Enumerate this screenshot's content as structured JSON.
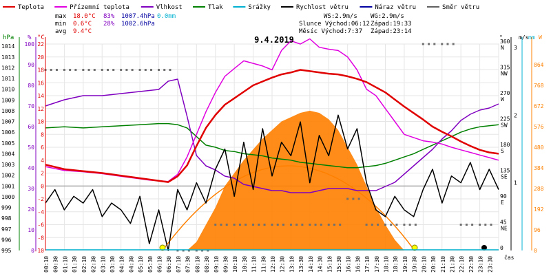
{
  "chart_data": {
    "type": "line",
    "title": "9.4.2019",
    "legend": [
      {
        "name": "Teplota",
        "color": "#e00000"
      },
      {
        "name": "Přízemní teplota",
        "color": "#e000e0"
      },
      {
        "name": "Vlhkost",
        "color": "#8000c0"
      },
      {
        "name": "Tlak",
        "color": "#008000"
      },
      {
        "name": "Srážky",
        "color": "#00b0d0"
      },
      {
        "name": "Rychlost větru",
        "color": "#000000"
      },
      {
        "name": "Náraz větru",
        "color": "#0000a0"
      },
      {
        "name": "Směr větru",
        "color": "#606060"
      }
    ],
    "stats": {
      "max": {
        "label": "max",
        "temp": "18.0°C",
        "hum": "83%",
        "press": "1007.4hPa",
        "rain": "0.0mm"
      },
      "min": {
        "label": "min",
        "temp": "0.6°C",
        "hum": "28%",
        "press": "1002.6hPa"
      },
      "avg": {
        "label": "avg",
        "temp": "9.4°C"
      }
    },
    "info": {
      "ws": "WS:2.9m/s",
      "wg": "WG:2.9m/s",
      "sun": "Slunce Východ:06:12",
      "sun_set": "Západ:19:33",
      "moon": "Měsíc Východ:7:37",
      "moon_set": "Západ:23:14"
    },
    "axes": {
      "hpa": {
        "unit": "hPa",
        "ticks": [
          995,
          996,
          997,
          998,
          999,
          1000,
          1001,
          1002,
          1003,
          1004,
          1005,
          1006,
          1007,
          1008,
          1009,
          1010,
          1011,
          1012,
          1013,
          1014
        ]
      },
      "pct": {
        "unit": "%",
        "ticks": [
          0,
          10,
          20,
          30,
          40,
          50,
          60,
          70,
          80,
          90,
          100
        ]
      },
      "c": {
        "unit": "°C",
        "ticks": [
          -10,
          -8,
          -6,
          -4,
          -2,
          0,
          2,
          4,
          6,
          8,
          10,
          12,
          14,
          16,
          18,
          20,
          22
        ]
      },
      "dir": {
        "unit": "°",
        "ticks": [
          "0",
          "45 NE",
          "90 E",
          "135 SE",
          "180 S",
          "225 SW",
          "270 W",
          "315 NW",
          "360 N"
        ]
      },
      "ms": {
        "unit": "m/s",
        "ticks": [
          1,
          2,
          3
        ]
      },
      "mm": {
        "unit": "mm"
      },
      "w": {
        "unit": "W",
        "ticks": [
          0,
          96,
          192,
          288,
          384,
          480,
          576,
          672,
          768,
          864
        ]
      },
      "x": {
        "label": "čas",
        "ticks": [
          "00:10",
          "00:30",
          "01:10",
          "01:30",
          "02:10",
          "02:30",
          "03:10",
          "03:30",
          "04:10",
          "04:30",
          "05:10",
          "05:30",
          "06:10",
          "06:30",
          "07:10",
          "07:30",
          "08:10",
          "08:30",
          "09:10",
          "09:30",
          "10:10",
          "10:30",
          "11:10",
          "11:30",
          "12:10",
          "12:30",
          "13:10",
          "13:30",
          "14:10",
          "14:30",
          "15:10",
          "15:30",
          "16:10",
          "16:30",
          "17:10",
          "17:30",
          "18:10",
          "18:30",
          "19:10",
          "19:30",
          "20:10",
          "20:30",
          "21:10",
          "21:30",
          "22:10",
          "22:30",
          "23:10",
          "23:30"
        ]
      }
    },
    "series": [
      {
        "name": "Teplota",
        "unit": "°C",
        "x": [
          0,
          1,
          2,
          3,
          4,
          5,
          5.5,
          6,
          6.5,
          7,
          7.5,
          8,
          8.5,
          9,
          9.5,
          10,
          10.5,
          11,
          11.5,
          12,
          12.5,
          13,
          13.5,
          14,
          14.5,
          15,
          15.5,
          16,
          16.5,
          17,
          17.5,
          18,
          18.5,
          19,
          19.5,
          20,
          20.5,
          21,
          21.5,
          22,
          22.5,
          23,
          23.5,
          24
        ],
        "y": [
          3.3,
          2.6,
          2.3,
          2.0,
          1.6,
          1.2,
          1.0,
          0.8,
          0.6,
          1.5,
          3.2,
          6.2,
          9.0,
          11.0,
          12.6,
          13.6,
          14.6,
          15.6,
          16.2,
          16.8,
          17.3,
          17.6,
          18.0,
          17.8,
          17.6,
          17.4,
          17.3,
          17.0,
          16.6,
          16.1,
          15.3,
          14.5,
          13.4,
          12.3,
          11.3,
          10.3,
          9.2,
          8.4,
          7.7,
          6.9,
          6.2,
          5.6,
          5.2,
          5.0
        ]
      },
      {
        "name": "Přízemní teplota",
        "unit": "°C",
        "x": [
          0,
          1,
          2,
          3,
          4,
          5,
          5.5,
          6,
          6.5,
          7,
          7.5,
          8,
          8.5,
          9,
          9.5,
          10,
          10.5,
          11,
          11.5,
          12,
          12.5,
          13,
          13.5,
          14,
          14.5,
          15,
          15.5,
          16,
          16.5,
          17,
          17.5,
          18,
          18.5,
          19,
          19.5,
          20,
          20.5,
          21,
          21.5,
          22,
          22.5,
          23,
          23.5,
          24
        ],
        "y": [
          3.0,
          2.4,
          2.2,
          1.9,
          1.5,
          1.1,
          0.9,
          0.8,
          0.7,
          1.8,
          4.5,
          8.0,
          11.5,
          14.5,
          17.0,
          18.2,
          19.4,
          19.0,
          18.6,
          18.0,
          21.0,
          22.5,
          22.0,
          22.8,
          21.5,
          21.2,
          21.0,
          20.0,
          18.0,
          15.0,
          14.0,
          12.0,
          10.0,
          8.0,
          7.5,
          7.0,
          6.8,
          6.5,
          6.0,
          5.6,
          5.2,
          4.8,
          4.4,
          4.0
        ]
      },
      {
        "name": "Vlhkost",
        "unit": "%",
        "x": [
          0,
          1,
          2,
          3,
          4,
          5,
          6,
          6.5,
          7,
          7.5,
          8,
          8.5,
          9,
          9.5,
          10,
          10.5,
          11,
          11.5,
          12,
          12.5,
          13,
          13.5,
          14,
          14.5,
          15,
          15.5,
          16,
          16.5,
          17,
          17.5,
          18,
          18.5,
          19,
          19.5,
          20,
          20.5,
          21,
          21.5,
          22,
          22.5,
          23,
          23.5,
          24
        ],
        "y": [
          70,
          73,
          75,
          75,
          76,
          77,
          78,
          82,
          83,
          65,
          46,
          41,
          39,
          36,
          35,
          32,
          31,
          30,
          29,
          29,
          28,
          28,
          28,
          29,
          30,
          30,
          30,
          29,
          29,
          29,
          31,
          33,
          37,
          41,
          45,
          49,
          54,
          58,
          63,
          66,
          68,
          69,
          71
        ]
      },
      {
        "name": "Tlak",
        "unit": "hPa",
        "x": [
          0,
          1,
          2,
          3,
          4,
          5,
          6,
          6.5,
          7,
          7.5,
          8,
          8.5,
          9,
          9.5,
          10,
          10.5,
          11,
          11.5,
          12,
          12.5,
          13,
          13.5,
          14,
          14.5,
          15,
          15.5,
          16,
          16.5,
          17,
          17.5,
          18,
          18.5,
          19,
          19.5,
          20,
          20.5,
          21,
          21.5,
          22,
          22.5,
          23,
          23.5,
          24
        ],
        "y": [
          1006.4,
          1006.5,
          1006.4,
          1006.5,
          1006.6,
          1006.7,
          1006.8,
          1006.8,
          1006.7,
          1006.4,
          1005.6,
          1004.8,
          1004.6,
          1004.3,
          1004.2,
          1004.0,
          1003.9,
          1003.8,
          1003.6,
          1003.5,
          1003.4,
          1003.2,
          1003.1,
          1003.0,
          1002.9,
          1002.8,
          1002.7,
          1002.7,
          1002.8,
          1002.9,
          1003.1,
          1003.4,
          1003.7,
          1004.0,
          1004.4,
          1004.8,
          1005.2,
          1005.6,
          1006.0,
          1006.3,
          1006.5,
          1006.6,
          1006.7
        ]
      },
      {
        "name": "Rychlost větru",
        "unit": "m/s",
        "x": [
          0,
          0.5,
          1,
          1.5,
          2,
          2.5,
          3,
          3.5,
          4,
          4.5,
          5,
          5.5,
          6,
          6.5,
          7,
          7.5,
          8,
          8.5,
          9,
          9.5,
          10,
          10.5,
          11,
          11.5,
          12,
          12.5,
          13,
          13.5,
          14,
          14.5,
          15,
          15.5,
          16,
          16.5,
          17,
          17.5,
          18,
          18.5,
          19,
          19.5,
          20,
          20.5,
          21,
          21.5,
          22,
          22.5,
          23,
          23.5,
          24
        ],
        "y": [
          0.7,
          0.9,
          0.6,
          0.8,
          0.7,
          0.9,
          0.5,
          0.7,
          0.6,
          0.4,
          0.8,
          0.1,
          0.6,
          0.0,
          0.9,
          0.6,
          1.0,
          0.7,
          1.2,
          1.5,
          0.8,
          1.6,
          0.9,
          1.8,
          1.1,
          1.6,
          1.4,
          1.9,
          1.0,
          1.7,
          1.4,
          2.0,
          1.5,
          1.8,
          1.0,
          0.6,
          0.5,
          0.8,
          0.6,
          0.5,
          0.9,
          1.2,
          0.7,
          1.1,
          1.0,
          1.3,
          0.9,
          1.2,
          0.9
        ]
      },
      {
        "name": "Směr větru",
        "unit": "°",
        "x": [
          0,
          1,
          2,
          3,
          4,
          5,
          6,
          7,
          8,
          9,
          10,
          11,
          12,
          13,
          14,
          15,
          16,
          17,
          18,
          19,
          20,
          21,
          22,
          23,
          24
        ],
        "y": [
          315,
          315,
          315,
          315,
          315,
          315,
          315,
          0,
          0,
          45,
          45,
          45,
          45,
          45,
          45,
          45,
          90,
          45,
          45,
          45,
          360,
          360,
          45,
          45,
          45
        ]
      },
      {
        "name": "Srážky",
        "unit": "mm",
        "x": [
          0,
          24
        ],
        "y": [
          0.0,
          0.0
        ]
      }
    ],
    "solar": {
      "unit": "W",
      "x": [
        7.5,
        8,
        8.5,
        9,
        9.5,
        10,
        10.5,
        11,
        11.5,
        12,
        12.5,
        13,
        13.5,
        14,
        14.5,
        15,
        15.5,
        16,
        16.5,
        17,
        17.5,
        18,
        18.5,
        19
      ],
      "y": [
        0,
        40,
        120,
        200,
        300,
        360,
        420,
        470,
        520,
        560,
        600,
        620,
        640,
        650,
        640,
        610,
        560,
        480,
        400,
        300,
        200,
        120,
        50,
        0
      ]
    },
    "xlim": [
      0,
      24
    ],
    "ylim": [
      -10,
      22
    ]
  }
}
